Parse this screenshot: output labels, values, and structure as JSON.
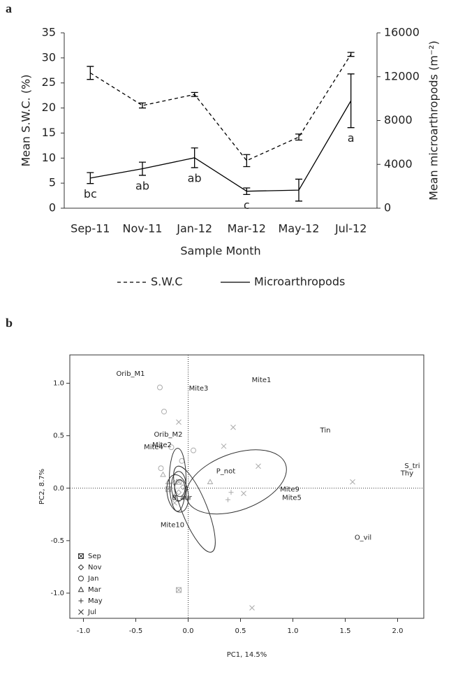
{
  "chart_data": [
    {
      "type": "line",
      "panel": "a",
      "x_label": "Sample Month",
      "y_label": "Mean S.W.C. (%)",
      "y2_label": "Mean microarthropods (m⁻²)",
      "categories": [
        "Sep-11",
        "Nov-11",
        "Jan-12",
        "Mar-12",
        "May-12",
        "Jul-12"
      ],
      "ylim": [
        0,
        35
      ],
      "yticks": [
        0,
        5,
        10,
        15,
        20,
        25,
        30,
        35
      ],
      "y2lim": [
        0,
        16000
      ],
      "y2ticks": [
        0,
        4000,
        8000,
        12000,
        16000
      ],
      "legend": "bottom",
      "series": [
        {
          "name": "S.W.C",
          "color": "#000000",
          "style": "dashed",
          "values": [
            27.0,
            20.5,
            22.7,
            9.5,
            14.2,
            30.7
          ],
          "errors": [
            1.3,
            0.5,
            0.4,
            1.2,
            0.6,
            0.4
          ]
        },
        {
          "name": "Microarthropods",
          "color": "#000000",
          "style": "solid",
          "axis": "y2",
          "values": [
            2750,
            3600,
            4600,
            1550,
            1650,
            9800
          ],
          "errors": [
            500,
            600,
            900,
            300,
            1000,
            2450
          ]
        }
      ],
      "annotations": [
        "bc",
        "ab",
        "ab",
        "c",
        null,
        "a"
      ]
    },
    {
      "type": "scatter",
      "panel": "b",
      "x_label": "PC1, 14.5%",
      "y_label": "PC2, 8.7%",
      "xlim": [
        -1.13,
        2.25
      ],
      "ylim": [
        -1.24,
        1.27
      ],
      "xticks": [
        {
          "value": -1.0,
          "label": "-1.0"
        },
        {
          "value": -0.5,
          "label": "-0.5"
        },
        {
          "value": 0.0,
          "label": "0.0"
        },
        {
          "value": 0.5,
          "label": "0.5"
        },
        {
          "value": 1.0,
          "label": "1.0"
        },
        {
          "value": 1.5,
          "label": "1.5"
        },
        {
          "value": 2.0,
          "label": "2.0"
        }
      ],
      "yticks": [
        {
          "value": -1.0,
          "label": "-1.0"
        },
        {
          "value": -0.5,
          "label": "-0.5"
        },
        {
          "value": 0.0,
          "label": "0.0"
        },
        {
          "value": 0.5,
          "label": "0.5"
        },
        {
          "value": 1.0,
          "label": "1.0"
        }
      ],
      "legend": "bottom-left",
      "color": "#aaaaaa",
      "series": [
        {
          "name": "Sep",
          "marker": "square-x",
          "x": [
            -0.09,
            -0.19,
            -0.09
          ],
          "y": [
            -0.97,
            -0.01,
            0.06
          ]
        },
        {
          "name": "Nov",
          "marker": "diamond",
          "x": [
            -0.09,
            -0.13,
            -0.05
          ],
          "y": [
            -0.04,
            0.05,
            0.01
          ]
        },
        {
          "name": "Jan",
          "marker": "circle",
          "x": [
            -0.27,
            -0.23,
            0.05,
            -0.26,
            -0.16,
            -0.06
          ],
          "y": [
            0.96,
            0.73,
            0.36,
            0.19,
            0.39,
            0.26
          ]
        },
        {
          "name": "Mar",
          "marker": "triangle",
          "x": [
            0.21,
            -0.24,
            -0.19
          ],
          "y": [
            0.06,
            0.13,
            0.06
          ]
        },
        {
          "name": "May",
          "marker": "plus",
          "x": [
            0.38,
            0.41,
            -0.13
          ],
          "y": [
            -0.11,
            -0.04,
            -0.07
          ]
        },
        {
          "name": "Jul",
          "marker": "x",
          "x": [
            -0.09,
            0.43,
            0.34,
            0.67,
            1.57,
            0.53,
            -0.13,
            0.61
          ],
          "y": [
            0.63,
            0.58,
            0.4,
            0.21,
            0.06,
            -0.05,
            -0.14,
            -1.14
          ]
        }
      ],
      "ellipses": [
        {
          "center": [
            0.46,
            0.06
          ],
          "radii": [
            0.5,
            0.27
          ],
          "angle": 20
        },
        {
          "center": [
            0.06,
            -0.2
          ],
          "radii": [
            0.44,
            0.12
          ],
          "angle": -68
        },
        {
          "center": [
            -0.1,
            0.08
          ],
          "radii": [
            0.08,
            0.3
          ],
          "angle": 0
        },
        {
          "center": [
            -0.09,
            0.02
          ],
          "radii": [
            0.07,
            0.14
          ],
          "angle": 0
        },
        {
          "center": [
            -0.1,
            -0.05
          ],
          "radii": [
            0.1,
            0.18
          ],
          "angle": 10
        },
        {
          "center": [
            -0.08,
            0.0
          ],
          "radii": [
            0.05,
            0.08
          ],
          "angle": 0
        }
      ],
      "labels": [
        {
          "text": "Orib_M1",
          "x": -0.55,
          "y": 1.09
        },
        {
          "text": "Mite3",
          "x": 0.1,
          "y": 0.95
        },
        {
          "text": "Mite1",
          "x": 0.7,
          "y": 1.03
        },
        {
          "text": "Orib_M2",
          "x": -0.19,
          "y": 0.51
        },
        {
          "text": "Mite2",
          "x": -0.25,
          "y": 0.41
        },
        {
          "text": "Mite4",
          "x": -0.33,
          "y": 0.39
        },
        {
          "text": "Tin",
          "x": 1.31,
          "y": 0.55
        },
        {
          "text": "S_tri",
          "x": 2.14,
          "y": 0.21
        },
        {
          "text": "Thy",
          "x": 2.09,
          "y": 0.14
        },
        {
          "text": "P_not",
          "x": 0.36,
          "y": 0.16
        },
        {
          "text": "Mite9",
          "x": 0.97,
          "y": -0.01
        },
        {
          "text": "Mite5",
          "x": 0.99,
          "y": -0.09
        },
        {
          "text": "B_aur",
          "x": -0.06,
          "y": -0.09
        },
        {
          "text": "Mite10",
          "x": -0.15,
          "y": -0.35
        },
        {
          "text": "O_vil",
          "x": 1.67,
          "y": -0.47
        }
      ]
    }
  ]
}
